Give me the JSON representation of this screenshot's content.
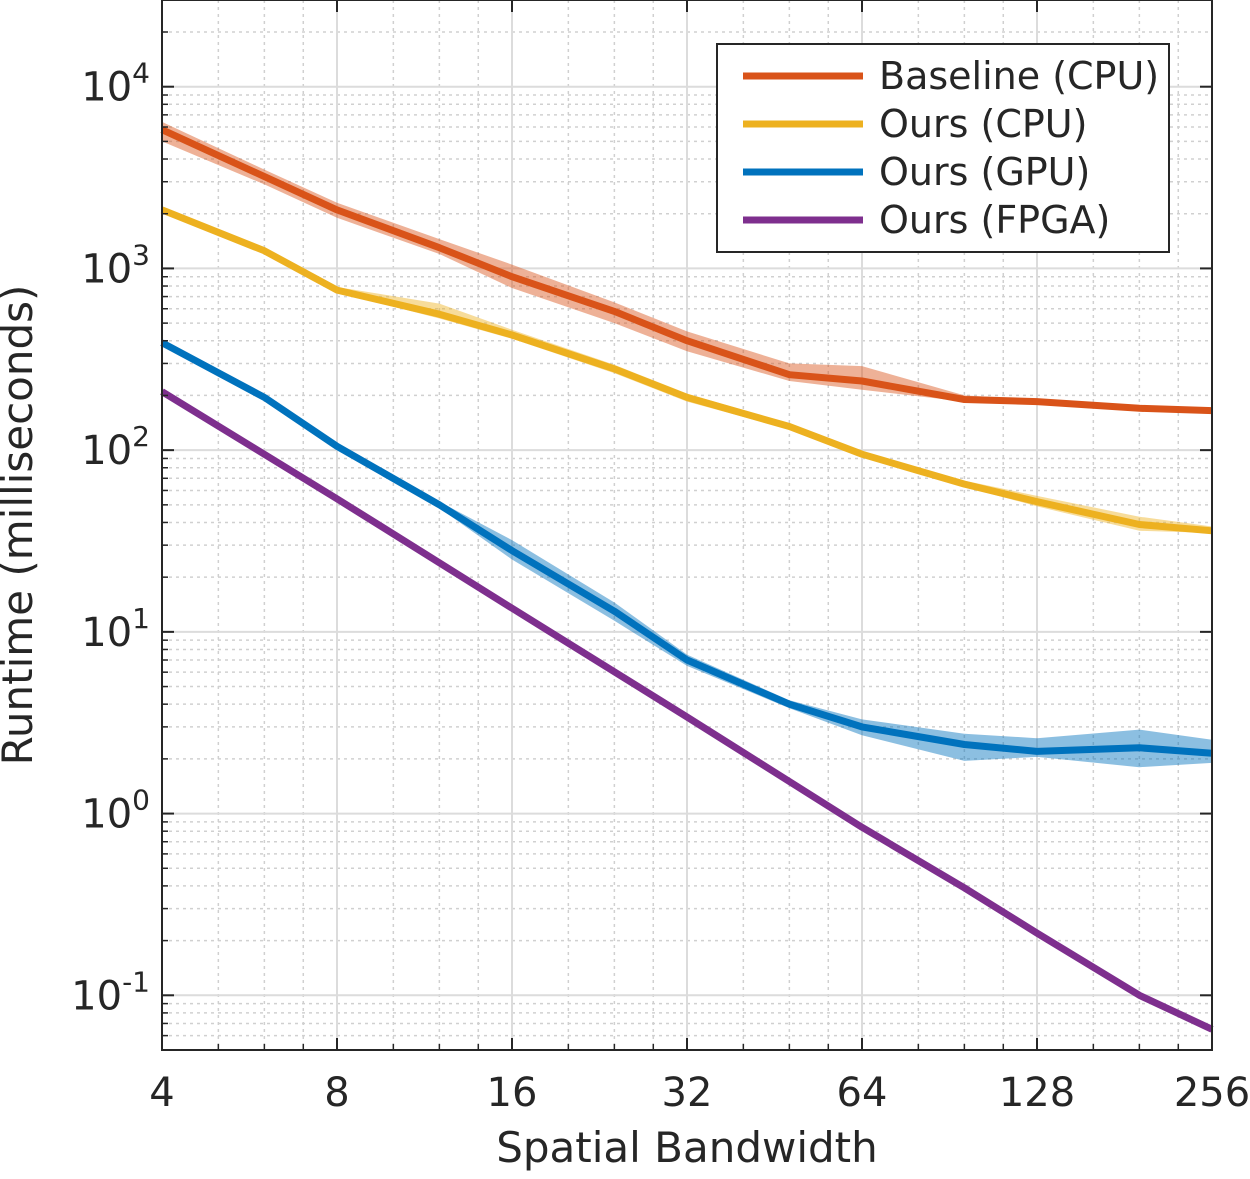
{
  "chart_data": {
    "type": "line",
    "title": "",
    "xlabel": "Spatial Bandwidth",
    "ylabel": "Runtime (milliseconds)",
    "xscale": "log2",
    "yscale": "log10",
    "xlim": [
      4,
      256
    ],
    "ylim": [
      0.05,
      30000
    ],
    "grid": true,
    "legend_position": "top-right",
    "x_ticks": [
      4,
      8,
      16,
      32,
      64,
      128,
      256
    ],
    "x_tick_labels": [
      "4",
      "8",
      "16",
      "32",
      "64",
      "128",
      "256"
    ],
    "y_ticks": [
      {
        "value": 0.1,
        "base": "10",
        "exp": "-1"
      },
      {
        "value": 1,
        "base": "10",
        "exp": "0"
      },
      {
        "value": 10,
        "base": "10",
        "exp": "1"
      },
      {
        "value": 100,
        "base": "10",
        "exp": "2"
      },
      {
        "value": 1000,
        "base": "10",
        "exp": "3"
      },
      {
        "value": 10000,
        "base": "10",
        "exp": "4"
      }
    ],
    "series": [
      {
        "name": "Baseline (CPU)",
        "color": "#D95319",
        "x": [
          4,
          6,
          8,
          12,
          16,
          24,
          32,
          48,
          64,
          96,
          128,
          192,
          256
        ],
        "y": [
          5800,
          3200,
          2100,
          1300,
          900,
          580,
          400,
          260,
          240,
          190,
          185,
          170,
          165
        ],
        "band_low": [
          5000,
          2900,
          1900,
          1200,
          780,
          500,
          350,
          240,
          215,
          185,
          180,
          165,
          160
        ],
        "band_high": [
          6400,
          3500,
          2300,
          1450,
          1050,
          650,
          450,
          300,
          290,
          200,
          190,
          175,
          170
        ]
      },
      {
        "name": "Ours (CPU)",
        "color": "#EDB120",
        "x": [
          4,
          6,
          8,
          12,
          16,
          24,
          32,
          48,
          64,
          96,
          128,
          192,
          256
        ],
        "y": [
          2100,
          1250,
          760,
          560,
          430,
          280,
          195,
          135,
          95,
          65,
          52,
          39,
          36
        ],
        "band_low": [
          2050,
          1220,
          740,
          530,
          410,
          265,
          185,
          130,
          92,
          63,
          49,
          36,
          35
        ],
        "band_high": [
          2150,
          1280,
          790,
          640,
          460,
          295,
          205,
          140,
          98,
          68,
          56,
          43,
          38
        ]
      },
      {
        "name": "Ours (GPU)",
        "color": "#0072BD",
        "x": [
          4,
          6,
          8,
          12,
          16,
          24,
          32,
          48,
          64,
          96,
          128,
          192,
          256
        ],
        "y": [
          390,
          195,
          105,
          50,
          28,
          13,
          7,
          4,
          3,
          2.4,
          2.2,
          2.3,
          2.15
        ],
        "band_low": [
          380,
          190,
          102,
          48,
          25,
          11.5,
          6.5,
          3.8,
          2.7,
          1.95,
          2.05,
          1.8,
          1.9
        ],
        "band_high": [
          400,
          200,
          108,
          52,
          32,
          14.5,
          7.5,
          4.2,
          3.3,
          2.75,
          2.6,
          2.9,
          2.55
        ]
      },
      {
        "name": "Ours (FPGA)",
        "color": "#7E2F8E",
        "x": [
          4,
          8,
          16,
          32,
          64,
          96,
          128,
          192,
          256
        ],
        "y": [
          210,
          54,
          13.5,
          3.4,
          0.84,
          0.39,
          0.22,
          0.1,
          0.065
        ]
      }
    ]
  }
}
